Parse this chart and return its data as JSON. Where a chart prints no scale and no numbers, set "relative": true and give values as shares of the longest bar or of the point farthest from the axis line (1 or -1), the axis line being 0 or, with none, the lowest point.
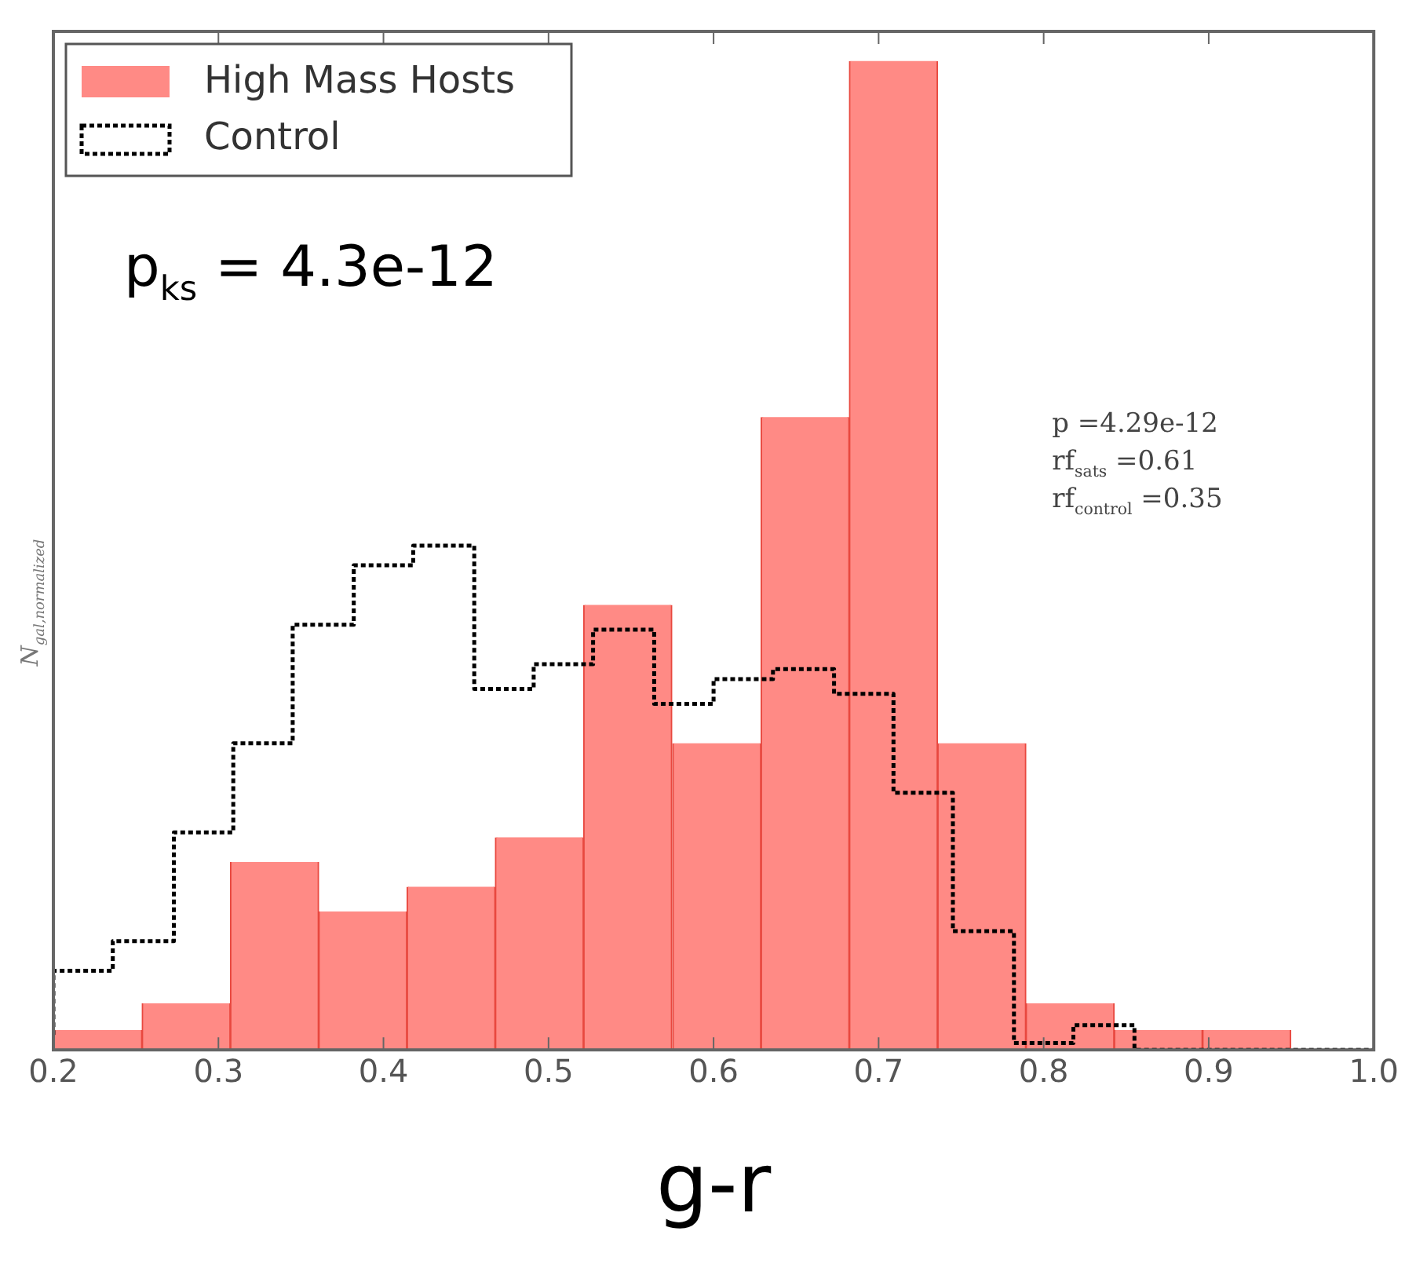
{
  "chart_data": {
    "type": "histogram",
    "xlabel": "g-r",
    "ylabel": "N$_{gal,normalized}$",
    "relative": true,
    "legend": "top left",
    "grid": false,
    "xlim": [
      0.2,
      1.0
    ],
    "xticks": [
      0.2,
      0.3,
      0.4,
      0.5,
      0.6,
      0.7,
      0.8,
      0.9,
      {
        "value": 1.0,
        "label": "1.0"
      }
    ],
    "annotations": [
      "p$_{ks}$ = 4.3e-12",
      "p =4.29e-12",
      "rf$_{sats}$ =0.61",
      "rf$_{control}$ =0.35"
    ],
    "bins": [
      0.2,
      0.254,
      0.307,
      0.361,
      0.414,
      0.468,
      0.521,
      0.575,
      0.629,
      0.682,
      0.736,
      0.789,
      0.843,
      0.896,
      0.95
    ],
    "series": [
      {
        "name": "High Mass Hosts",
        "color": "#ff8a85",
        "values": [
          0.02,
          0.047,
          0.19,
          0.14,
          0.165,
          0.215,
          0.45,
          0.31,
          0.64,
          1.0,
          0.31,
          0.047,
          0.02,
          0.02
        ]
      },
      {
        "name": "Control",
        "type": "step",
        "color": "#000000",
        "line_style": "dotted",
        "x": [
          0.2,
          0.236,
          0.273,
          0.309,
          0.345,
          0.382,
          0.418,
          0.455,
          0.491,
          0.527,
          0.564,
          0.6,
          0.636,
          0.673,
          0.709,
          0.745,
          0.782,
          0.818,
          0.855,
          0.891,
          0.927,
          0.964,
          1.0
        ],
        "values": [
          0.015,
          0.08,
          0.11,
          0.22,
          0.31,
          0.43,
          0.49,
          0.51,
          0.365,
          0.39,
          0.425,
          0.35,
          0.375,
          0.385,
          0.36,
          0.26,
          0.12,
          0.007,
          0.025,
          0,
          0,
          0,
          0
        ]
      }
    ]
  }
}
